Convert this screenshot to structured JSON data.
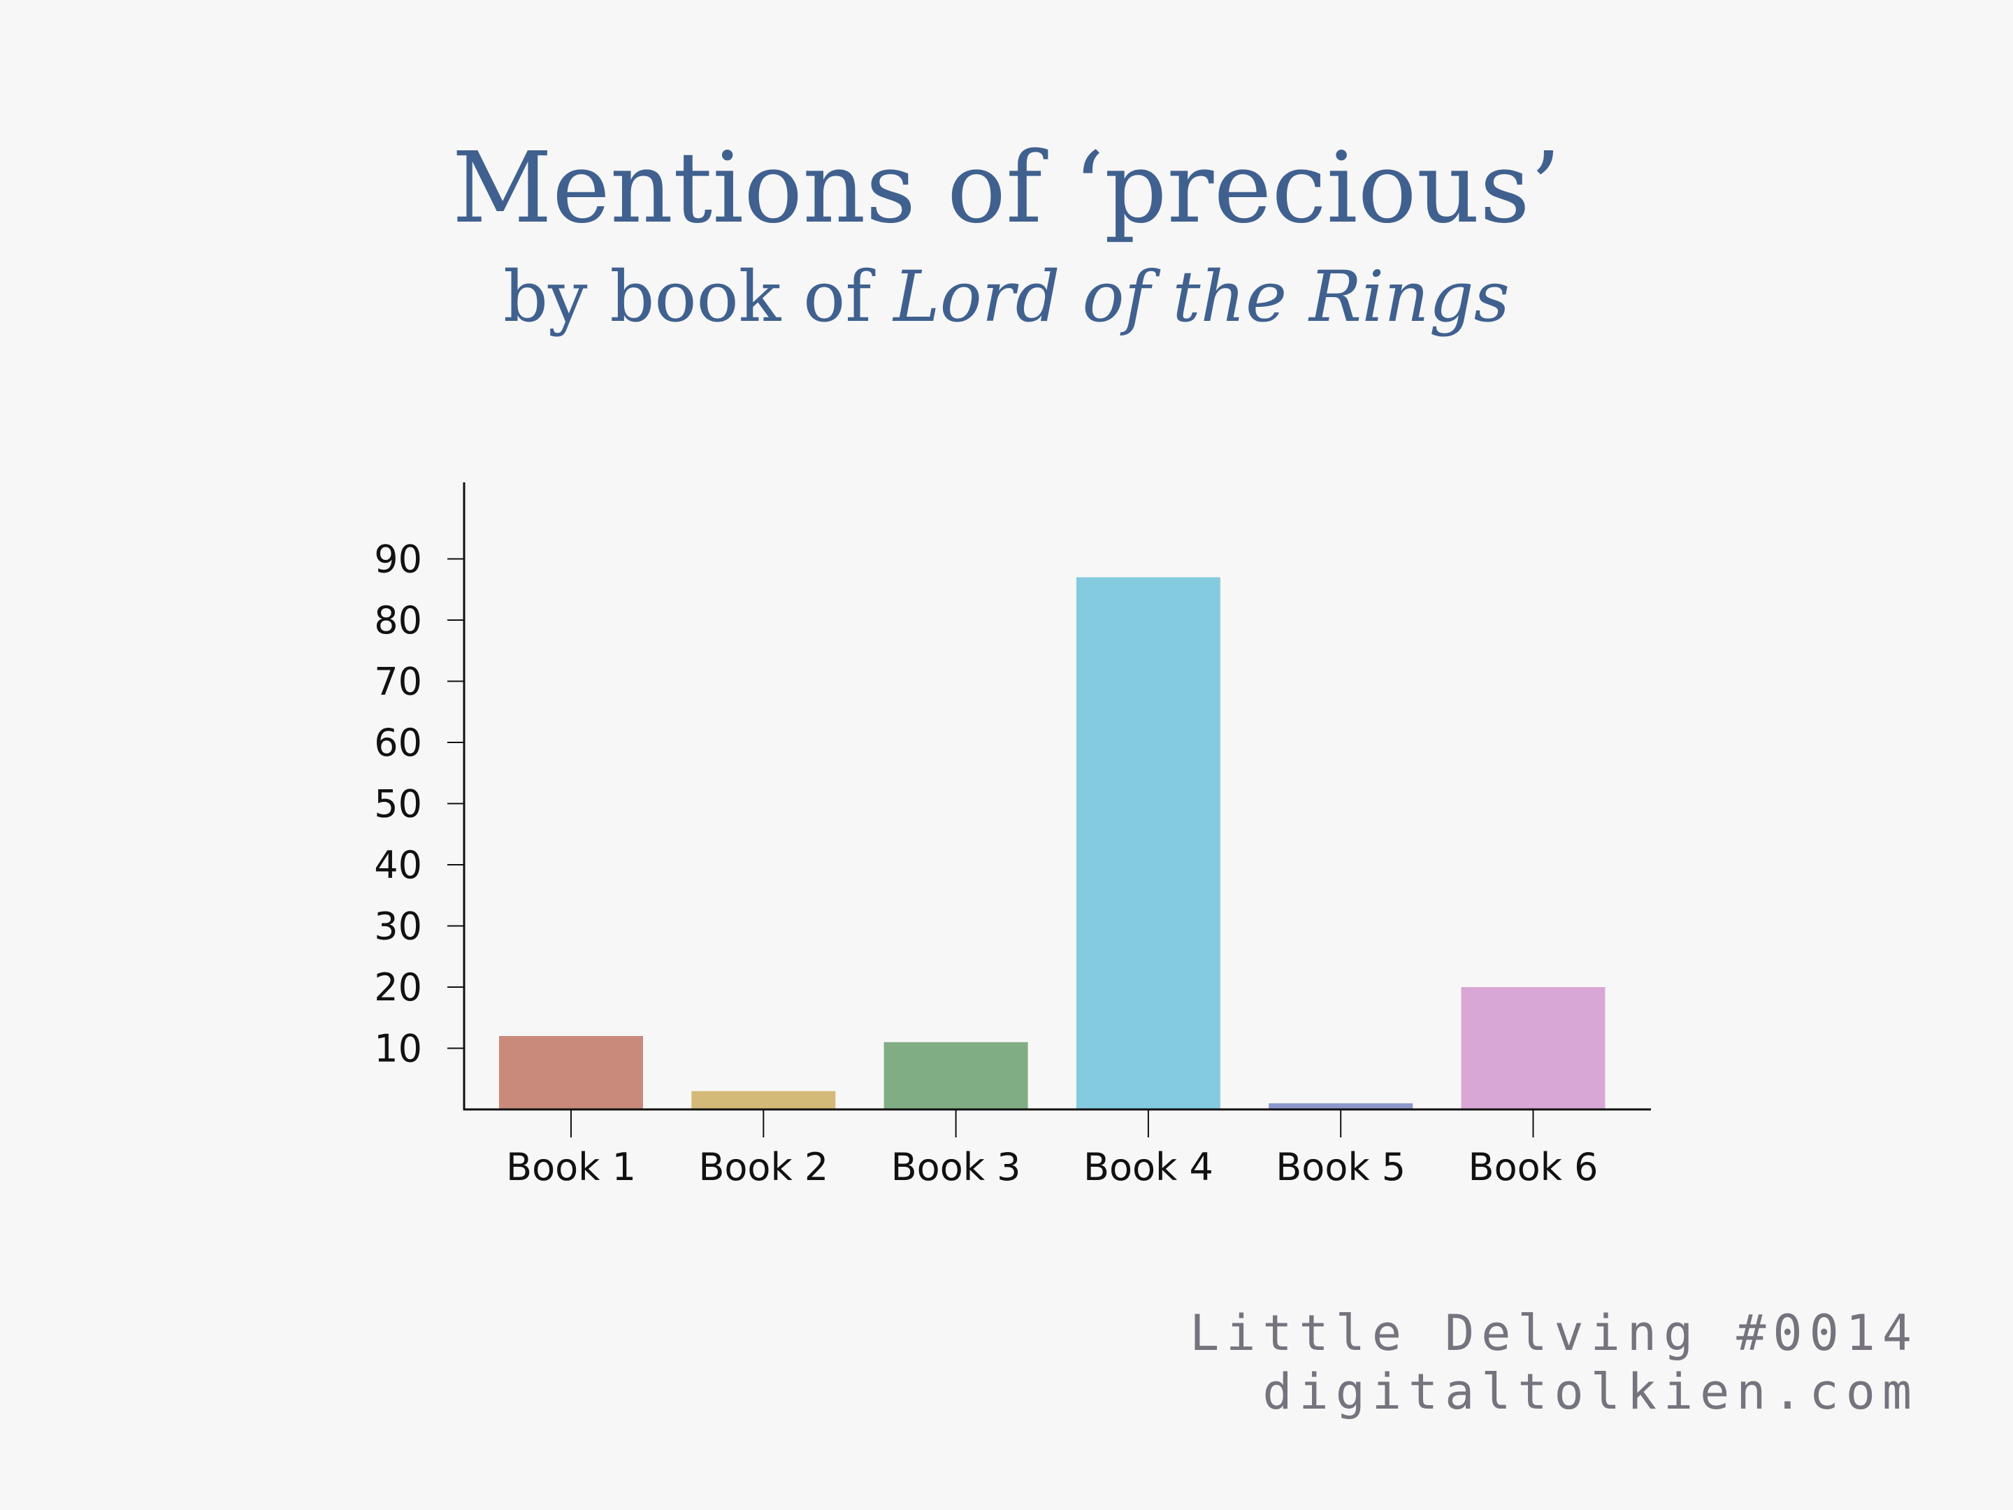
{
  "chart_data": {
    "type": "bar",
    "title": "Mentions of ‘precious’",
    "subtitle_prefix": "by book of ",
    "subtitle_italic": "Lord of the Rings",
    "xlabel": "",
    "ylabel": "",
    "categories": [
      "Book 1",
      "Book 2",
      "Book 3",
      "Book 4",
      "Book 5",
      "Book 6"
    ],
    "values": [
      12,
      3,
      11,
      87,
      1,
      20
    ],
    "colors": [
      "#c98a7c",
      "#d4ba78",
      "#80ad84",
      "#84cbdf",
      "#8c97cb",
      "#d9a7d6"
    ],
    "yticks": [
      10,
      20,
      30,
      40,
      50,
      60,
      70,
      80,
      90
    ],
    "ylim": [
      0,
      102
    ],
    "grid": false,
    "legend": "none"
  },
  "credit": {
    "line1": "Little Delving #0014",
    "line2": "digitaltolkien.com"
  },
  "colors": {
    "background": "#f7f7f7",
    "title": "#40618f",
    "credit": "#76737f",
    "axis": "#111111"
  }
}
